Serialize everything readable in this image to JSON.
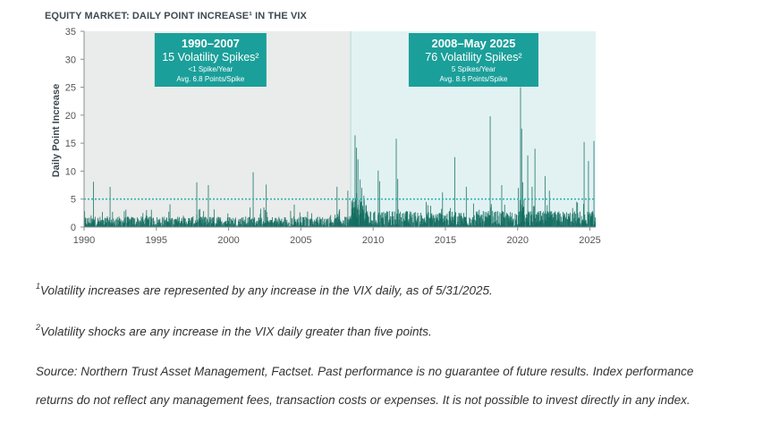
{
  "chart_data": {
    "type": "bar",
    "title": "EQUITY MARKET: DAILY POINT INCREASE¹ IN THE VIX",
    "ylabel": "Daily Point Increase",
    "xlabel": "",
    "ylim": [
      0,
      35
    ],
    "xlim": [
      1990,
      2025.4
    ],
    "y_ticks": [
      "0",
      "5",
      "10",
      "15",
      "20",
      "25",
      "30",
      "35"
    ],
    "x_ticks": [
      "1990",
      "1995",
      "2000",
      "2005",
      "2010",
      "2015",
      "2020",
      "2025"
    ],
    "threshold": 5,
    "regions": [
      {
        "from": 1990,
        "to": 2008.45,
        "color": "#e9ecea",
        "heading": "1990–2007",
        "subheading": "15 Volatility Spikes²",
        "line1": "<1 Spike/Year",
        "line2": "Avg. 6.8 Points/Spike"
      },
      {
        "from": 2008.45,
        "to": 2025.4,
        "color": "#e2f2f2",
        "heading": "2008–May 2025",
        "subheading": "76 Volatility Spikes²",
        "line1": "5 Spikes/Year",
        "line2": "Avg. 8.6 Points/Spike"
      }
    ],
    "spikes": [
      {
        "x": 1990.65,
        "y": 8.1
      },
      {
        "x": 1991.8,
        "y": 7.2
      },
      {
        "x": 1997.8,
        "y": 8.0
      },
      {
        "x": 1998.6,
        "y": 7.5
      },
      {
        "x": 2001.7,
        "y": 9.8
      },
      {
        "x": 2002.6,
        "y": 7.6
      },
      {
        "x": 2007.5,
        "y": 7.2
      },
      {
        "x": 2008.25,
        "y": 6.5
      },
      {
        "x": 2008.75,
        "y": 16.4
      },
      {
        "x": 2008.85,
        "y": 14.2
      },
      {
        "x": 2008.95,
        "y": 12.1
      },
      {
        "x": 2009.1,
        "y": 8.5
      },
      {
        "x": 2010.35,
        "y": 10.1
      },
      {
        "x": 2010.45,
        "y": 8.2
      },
      {
        "x": 2011.6,
        "y": 15.8
      },
      {
        "x": 2011.7,
        "y": 8.6
      },
      {
        "x": 2014.8,
        "y": 6.2
      },
      {
        "x": 2015.65,
        "y": 12.5
      },
      {
        "x": 2016.45,
        "y": 7.2
      },
      {
        "x": 2018.1,
        "y": 19.8
      },
      {
        "x": 2018.9,
        "y": 7.5
      },
      {
        "x": 2020.05,
        "y": 7.0
      },
      {
        "x": 2020.2,
        "y": 25.0
      },
      {
        "x": 2020.28,
        "y": 17.6
      },
      {
        "x": 2020.35,
        "y": 8.0
      },
      {
        "x": 2020.7,
        "y": 12.8
      },
      {
        "x": 2021.0,
        "y": 7.2
      },
      {
        "x": 2021.2,
        "y": 14.0
      },
      {
        "x": 2021.9,
        "y": 9.1
      },
      {
        "x": 2022.2,
        "y": 6.5
      },
      {
        "x": 2024.6,
        "y": 15.2
      },
      {
        "x": 2024.9,
        "y": 11.8
      },
      {
        "x": 2025.28,
        "y": 15.4
      }
    ],
    "baseline_era1_avg": 1.2,
    "baseline_era2_avg": 1.8
  },
  "notes": {
    "note1_sup": "1",
    "note1": "Volatility increases are represented by any increase in the VIX daily, as of 5/31/2025.",
    "note2_sup": "2",
    "note2": "Volatility shocks are any increase in the VIX daily greater than five points.",
    "source_line1": "Source: Northern Trust Asset Management, Factset. Past performance is no guarantee of future results. Index performance",
    "source_line2": "returns do not reflect any management fees, transaction costs or expenses. It is not possible to invest directly in any index."
  },
  "colors": {
    "bar": "#0f6b5e",
    "threshold": "#2bb5b5",
    "label_box": "#1b9f9a"
  }
}
